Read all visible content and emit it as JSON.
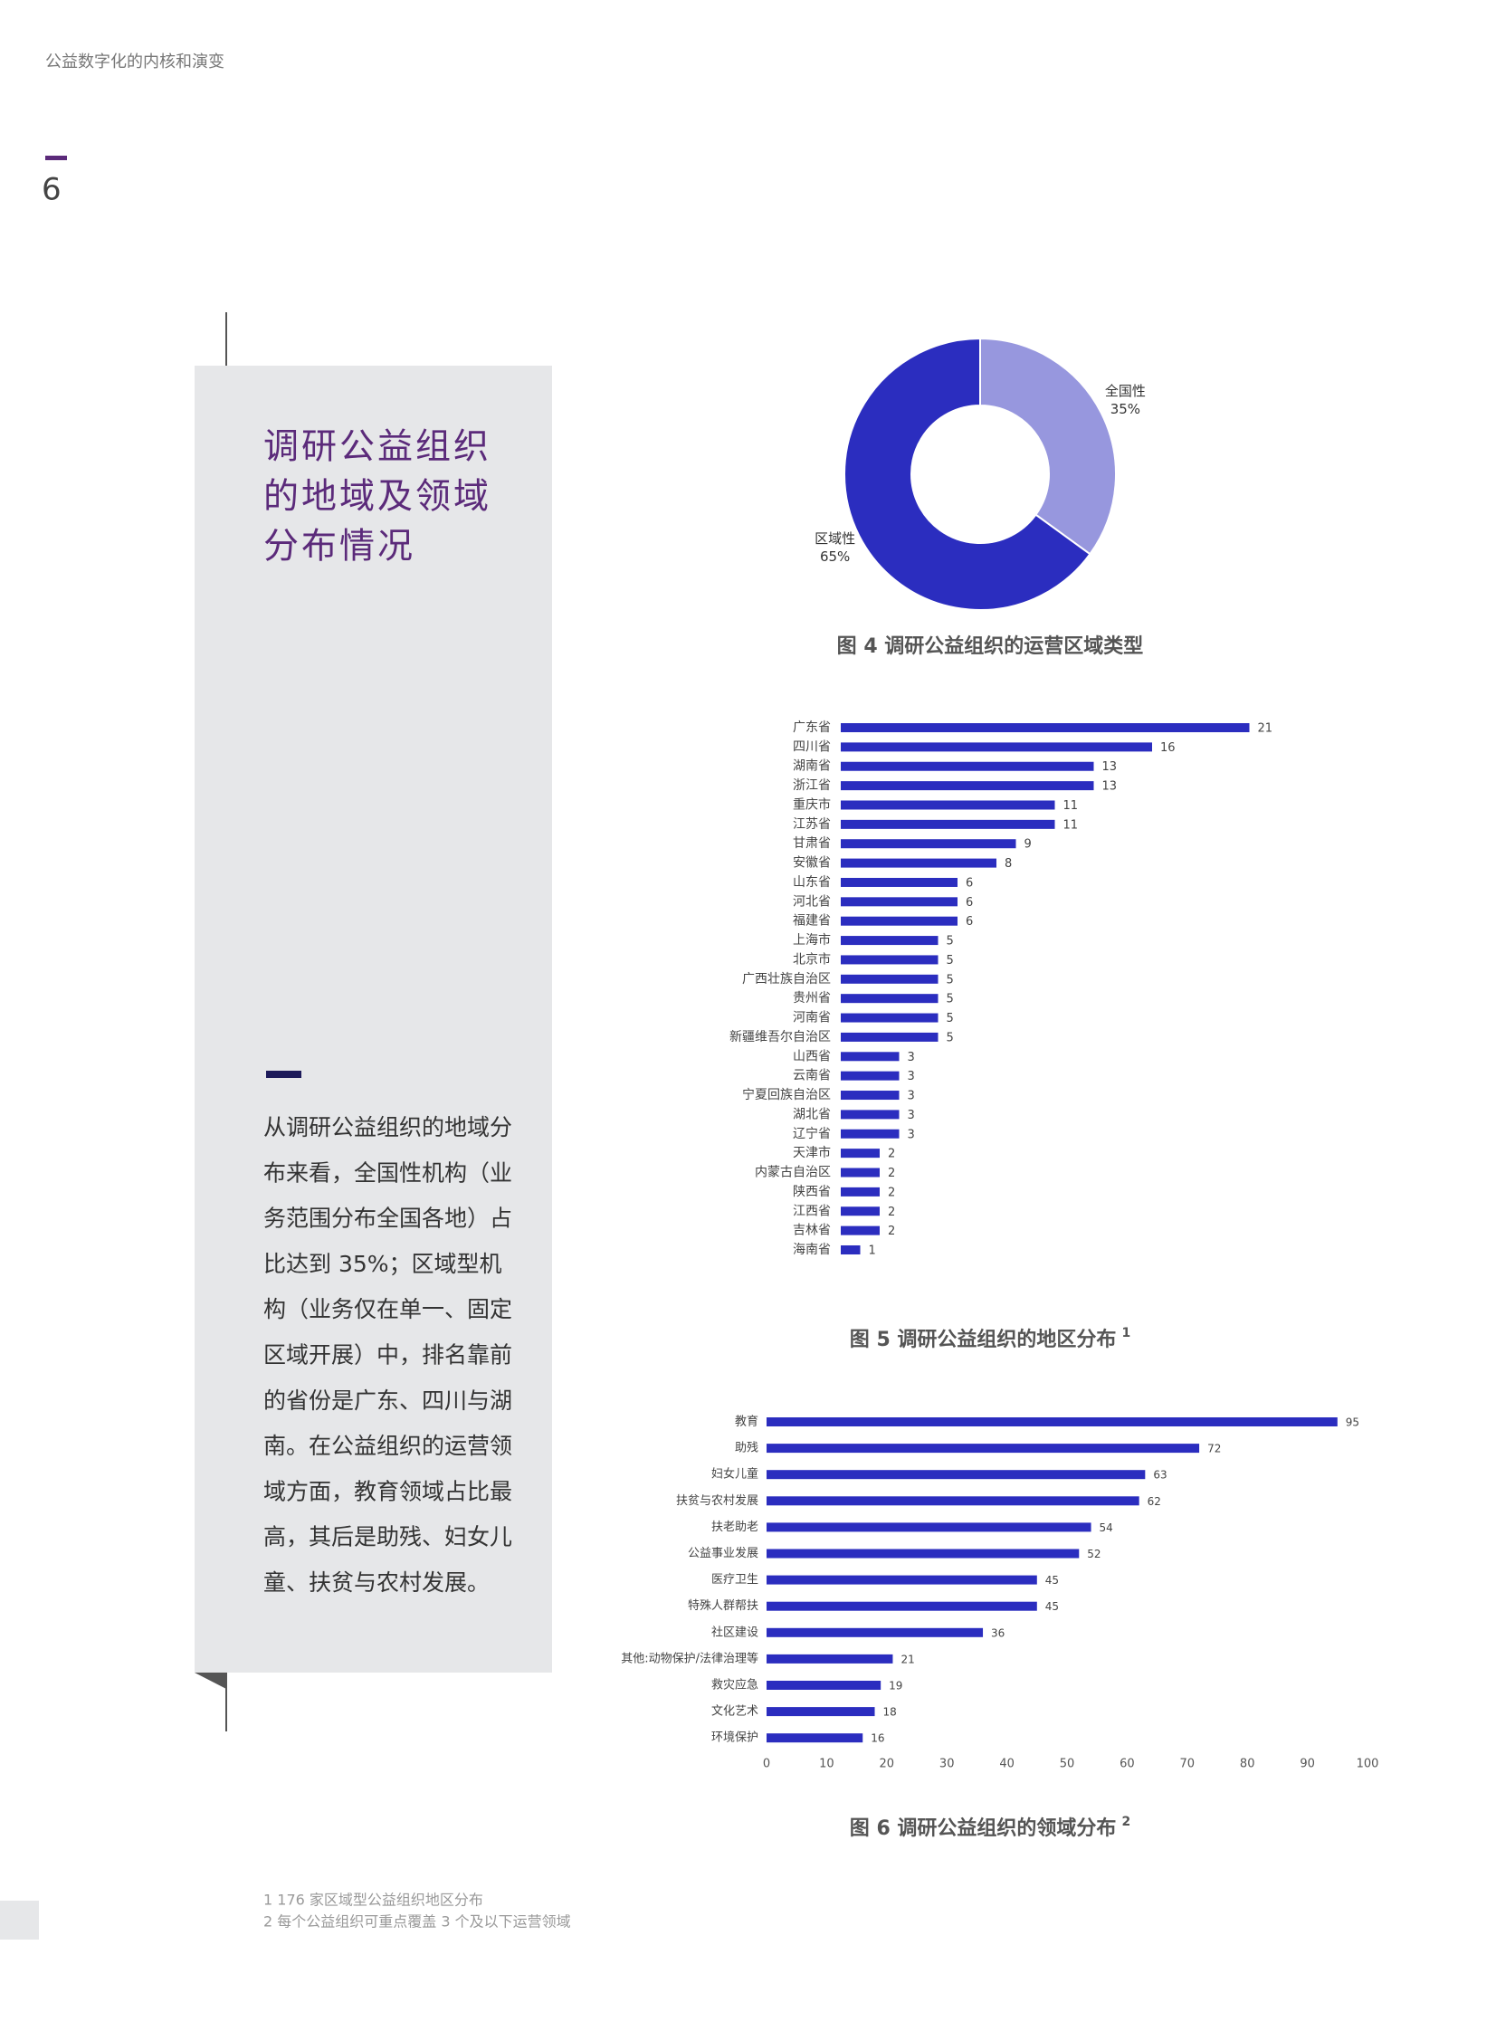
{
  "header": {
    "title": "公益数字化的内核和演变",
    "page_number": "6"
  },
  "sidebar": {
    "title_lines": [
      "调研公益组织",
      "的地域及领域",
      "分布情况"
    ],
    "body_lines": [
      "从调研公益组织的地域分",
      "布来看，全国性机构（业",
      "务范围分布全国各地）占",
      "比达到 35%；区域型机",
      "构（业务仅在单一、固定",
      "区域开展）中，排名靠前",
      "的省份是广东、四川与湖",
      "南。在公益组织的运营领",
      "域方面，教育领域占比最",
      "高，其后是助残、妇女儿",
      "童、扶贫与农村发展。"
    ]
  },
  "chart_data": [
    {
      "type": "pie",
      "donut": true,
      "title": "图 4 调研公益组织的运营区域类型",
      "categories": [
        "全国性",
        "区域性"
      ],
      "values": [
        35,
        65
      ],
      "value_labels": [
        "35%",
        "65%"
      ],
      "colors": [
        "#9797de",
        "#2b2dbf"
      ]
    },
    {
      "type": "barh",
      "title": "图 5 调研公益组织的地区分布",
      "title_note": "1",
      "color": "#2b2dbf",
      "categories": [
        "广东省",
        "四川省",
        "湖南省",
        "浙江省",
        "重庆市",
        "江苏省",
        "甘肃省",
        "安徽省",
        "山东省",
        "河北省",
        "福建省",
        "上海市",
        "北京市",
        "广西壮族自治区",
        "贵州省",
        "河南省",
        "新疆维吾尔自治区",
        "山西省",
        "云南省",
        "宁夏回族自治区",
        "湖北省",
        "辽宁省",
        "天津市",
        "内蒙古自治区",
        "陕西省",
        "江西省",
        "吉林省",
        "海南省"
      ],
      "values": [
        21,
        16,
        13,
        13,
        11,
        11,
        9,
        8,
        6,
        6,
        6,
        5,
        5,
        5,
        5,
        5,
        5,
        3,
        3,
        3,
        3,
        3,
        2,
        2,
        2,
        2,
        2,
        1
      ]
    },
    {
      "type": "barh",
      "title": "图 6 调研公益组织的领域分布",
      "title_note": "2",
      "color": "#2b2dbf",
      "categories": [
        "教育",
        "助残",
        "妇女儿童",
        "扶贫与农村发展",
        "扶老助老",
        "公益事业发展",
        "医疗卫生",
        "特殊人群帮扶",
        "社区建设",
        "其他:动物保护/法律治理等",
        "救灾应急",
        "文化艺术",
        "环境保护"
      ],
      "values": [
        95,
        72,
        63,
        62,
        54,
        52,
        45,
        45,
        36,
        21,
        19,
        18,
        16
      ],
      "xlim": [
        0,
        100
      ],
      "xticks": [
        0,
        10,
        20,
        30,
        40,
        50,
        60,
        70,
        80,
        90,
        100
      ]
    }
  ],
  "footnotes": [
    "1 176 家区域型公益组织地区分布",
    "2 每个公益组织可重点覆盖 3 个及以下运营领域"
  ]
}
